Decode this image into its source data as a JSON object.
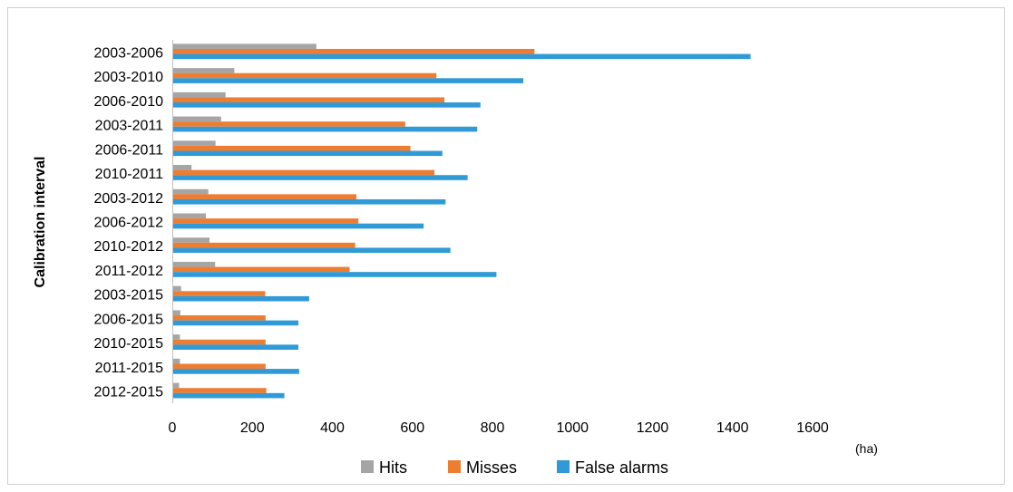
{
  "chart_data": {
    "type": "bar",
    "orientation": "horizontal",
    "title": "",
    "xlabel": "",
    "x_unit": "(ha)",
    "ylabel": "Calibration interval",
    "xlim": [
      0,
      1600
    ],
    "xticks": [
      "0",
      "200",
      "400",
      "600",
      "800",
      "1000",
      "1200",
      "1400",
      "1600"
    ],
    "grid": false,
    "legend_position": "bottom",
    "categories": [
      "2003-2006",
      "2003-2010",
      "2006-2010",
      "2003-2011",
      "2006-2011",
      "2010-2011",
      "2003-2012",
      "2006-2012",
      "2010-2012",
      "2011-2012",
      "2003-2015",
      "2006-2015",
      "2010-2015",
      "2011-2015",
      "2012-2015"
    ],
    "series": [
      {
        "name": "Hits",
        "color": "#a5a5a5",
        "values": [
          360,
          155,
          133,
          122,
          108,
          48,
          90,
          84,
          93,
          107,
          22,
          20,
          19,
          19,
          17
        ]
      },
      {
        "name": "Misses",
        "color": "#ed7d31",
        "values": [
          905,
          660,
          680,
          582,
          595,
          655,
          460,
          465,
          457,
          443,
          232,
          233,
          233,
          233,
          235
        ]
      },
      {
        "name": "False alarms",
        "color": "#2f9ad6",
        "values": [
          1445,
          877,
          770,
          762,
          675,
          738,
          683,
          628,
          695,
          810,
          342,
          315,
          315,
          317,
          280
        ]
      }
    ]
  }
}
